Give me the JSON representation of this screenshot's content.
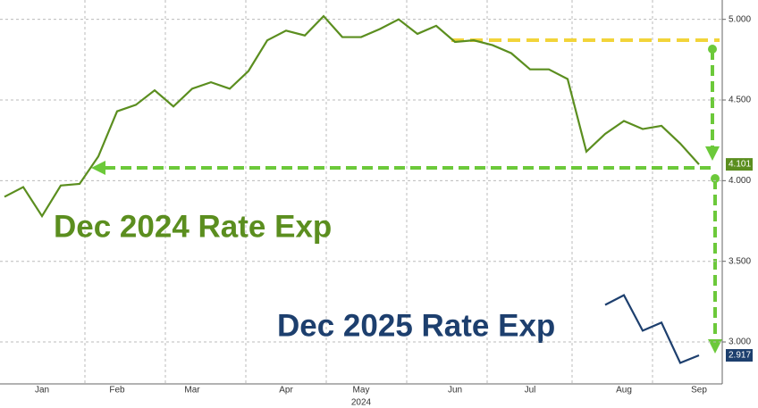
{
  "chart_data": {
    "type": "line",
    "categories": [
      null,
      null,
      "Jan",
      null,
      null,
      null,
      "Feb",
      null,
      null,
      null,
      "Mar",
      null,
      null,
      null,
      null,
      "Apr",
      null,
      null,
      null,
      "May",
      null,
      null,
      null,
      null,
      "Jun",
      null,
      null,
      null,
      "Jul",
      null,
      null,
      null,
      null,
      "Aug",
      null,
      null,
      null,
      "Sep"
    ],
    "x_label": "2024",
    "series": [
      {
        "name": "Dec 2024 Rate Exp",
        "color": "#5b8e1f",
        "values": [
          3.9,
          3.96,
          3.78,
          3.97,
          3.98,
          4.15,
          4.43,
          4.47,
          4.56,
          4.46,
          4.57,
          4.61,
          4.57,
          4.68,
          4.87,
          4.93,
          4.9,
          5.02,
          4.89,
          4.89,
          4.94,
          5.0,
          4.91,
          4.96,
          4.86,
          4.87,
          4.84,
          4.79,
          4.69,
          4.69,
          4.63,
          4.18,
          4.29,
          4.37,
          4.32,
          4.34,
          4.23,
          4.101
        ]
      },
      {
        "name": "Dec 2025 Rate Exp",
        "color": "#1d3f6e",
        "values": [
          null,
          null,
          null,
          null,
          null,
          null,
          null,
          null,
          null,
          null,
          null,
          null,
          null,
          null,
          null,
          null,
          null,
          null,
          null,
          null,
          null,
          null,
          null,
          null,
          null,
          null,
          null,
          null,
          null,
          null,
          null,
          null,
          3.23,
          3.29,
          3.07,
          3.12,
          2.87,
          2.917
        ]
      }
    ],
    "ylim": [
      2.74,
      5.12
    ],
    "yticks": [
      {
        "value": 3,
        "label": "3.000"
      },
      {
        "value": 3.5,
        "label": "3.500"
      },
      {
        "value": 4,
        "label": "4.000"
      },
      {
        "value": 4.5,
        "label": "4.500"
      },
      {
        "value": 5,
        "label": "5.000"
      }
    ],
    "grid": true
  }
}
